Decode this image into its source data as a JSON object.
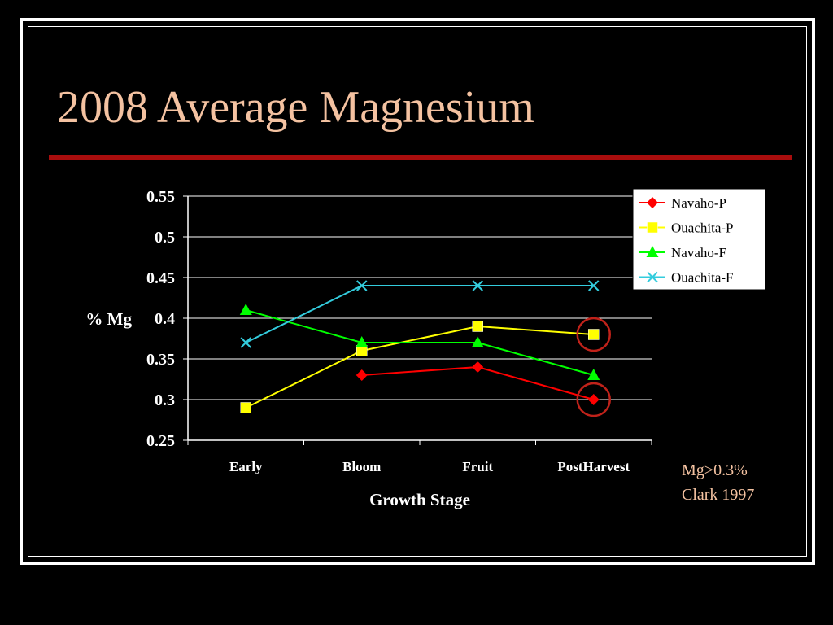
{
  "slide": {
    "title": "2008 Average Magnesium",
    "note_line1": "Mg>0.3%",
    "note_line2": "Clark 1997"
  },
  "colors": {
    "title": "#f4c2a1",
    "rule": "#a80d0d",
    "background": "#000000"
  },
  "chart_data": {
    "type": "line",
    "title": "",
    "xlabel": "Growth Stage",
    "ylabel": "% Mg",
    "categories": [
      "Early",
      "Bloom",
      "Fruit",
      "PostHarvest"
    ],
    "ylim": [
      0.25,
      0.55
    ],
    "yticks": [
      "0.25",
      "0.3",
      "0.35",
      "0.4",
      "0.45",
      "0.5",
      "0.55"
    ],
    "grid": true,
    "legend_position": "top-right",
    "series": [
      {
        "name": "Navaho-P",
        "color": "#ff0000",
        "marker": "diamond",
        "values": [
          null,
          0.33,
          0.34,
          0.3
        ]
      },
      {
        "name": "Ouachita-P",
        "color": "#ffff00",
        "marker": "square",
        "values": [
          0.29,
          0.36,
          0.39,
          0.38
        ]
      },
      {
        "name": "Navaho-F",
        "color": "#00ff00",
        "marker": "triangle",
        "values": [
          0.41,
          0.37,
          0.37,
          0.33
        ]
      },
      {
        "name": "Ouachita-F",
        "color": "#33ccdd",
        "marker": "x",
        "values": [
          0.37,
          0.44,
          0.44,
          0.44
        ]
      }
    ],
    "highlights": [
      {
        "series": "Ouachita-P",
        "category": "PostHarvest",
        "color": "#c0221a"
      },
      {
        "series": "Navaho-P",
        "category": "PostHarvest",
        "color": "#c0221a"
      }
    ]
  }
}
